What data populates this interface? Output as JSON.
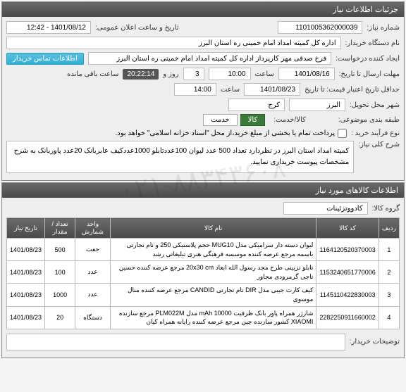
{
  "panels": {
    "info": {
      "title": "جزئیات اطلاعات نیاز"
    },
    "goods": {
      "title": "اطلاعات کالاهای مورد نیاز"
    }
  },
  "fields": {
    "need_no_label": "شماره نیاز:",
    "need_no": "1101005362000039",
    "announce_label": "تاریخ و ساعت اعلان عمومی:",
    "announce": "1401/08/12 - 12:42",
    "buyer_label": "نام دستگاه خریدار:",
    "buyer": "اداره کل کمیته امداد امام خمینی ره استان البرز",
    "requester_label": "ایجاد کننده درخواست:",
    "requester": "فرخ صدقی مهر کارپرداز اداره کل کمیته امداد امام خمینی ره استان البرز",
    "contact_btn": "اطلاعات تماس خریدار",
    "deadline_label": "مهلت ارسال تا تاریخ:",
    "deadline_date": "1401/08/16",
    "time_label": "ساعت",
    "deadline_time": "10:00",
    "days": "3",
    "days_label": "روز و",
    "countdown": "20:22:14",
    "remain_label": "ساعت باقی مانده",
    "valid_label": "حداقل تاریخ اعتبار قیمت: تا تاریخ",
    "valid_date": "1401/08/23",
    "valid_time": "14:00",
    "city_label": "شهر محل تحویل:",
    "province": "البرز",
    "city": "کرج",
    "delivery_label": "طبقه بندی موضوعی:",
    "opt_goods": "کالا",
    "opt_service": "خدمت",
    "goods_service_label": "کالا/خدمت:",
    "process_label": "نوع فرآیند خرید :",
    "process_note": "پرداخت تمام یا بخشی از مبلغ خرید،از محل \"اسناد خزانه اسلامی\" خواهد بود.",
    "summary_label": "شرح کلی نیاز:",
    "summary": "کمیته امداد استان البرز در نظردارد تعداد 500 عدد لیوان 100عددتابلو 1000عددکیف عابربانک 20عدد پاوربانک به شرح مشخصات پیوست خریداری نمایید.",
    "group_label": "گروه کالا:",
    "group": "کادووتزئینات",
    "buyer_notes_label": "توضیحات خریدار:"
  },
  "table": {
    "headers": [
      "ردیف",
      "کد کالا",
      "نام کالا",
      "واحد شمارش",
      "تعداد / مقدار",
      "تاریخ نیاز"
    ],
    "rows": [
      [
        "1",
        "1164120520370003",
        "لیوان دسته دار سرامیکی مدل MUG10 حجم پلاستیکی 250 و نام تجارتی باسمه مرجع عرضه کننده موسسه فرهنگی هنری تبلیغاتی رشد",
        "جفت",
        "500",
        "1401/08/23"
      ],
      [
        "2",
        "1153240651770006",
        "تابلو تزیینی طرح مجد رسول الله ابعاد 20x30 cm مرجع عرضه کننده حسین تاجی گرمرودی مجاور",
        "عدد",
        "100",
        "1401/08/23"
      ],
      [
        "3",
        "1145110422830003",
        "کیف کارت جیبی مدل DIR نام تجارتی CANDID مرجع عرضه کننده منال موسوی",
        "عدد",
        "1000",
        "1401/08/23"
      ],
      [
        "4",
        "2282250911660002",
        "شارژر همراه پاور بانک ظرفیت mAh 10000 مدل PLM022M مرجع سازنده XIAOMI کشور سازنده چین مرجع عرضه کننده رایانه همراه کیان",
        "دستگاه",
        "20",
        "1401/08/23"
      ]
    ]
  },
  "watermark": "۰۲۱-۸۸۳۴۳۶۰۸"
}
